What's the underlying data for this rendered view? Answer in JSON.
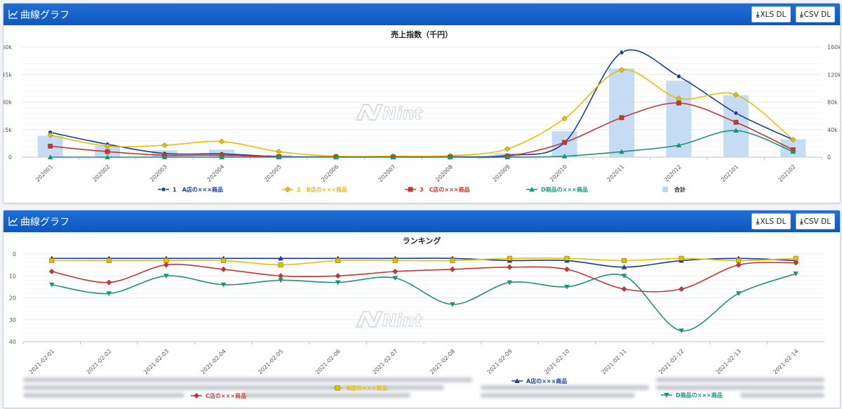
{
  "panel1": {
    "header_title": "曲線グラフ",
    "xls_button": "XLS DL",
    "csv_button": "CSV DL",
    "watermark": "Nint"
  },
  "panel2": {
    "header_title": "曲線グラフ",
    "xls_button": "XLS DL",
    "csv_button": "CSV DL",
    "watermark": "Nint"
  },
  "colors": {
    "header": "#1565c8",
    "seriesA": "#153d99",
    "seriesB": "#e6c000",
    "seriesC": "#cc3333",
    "seriesD": "#1a9477",
    "total": "#bcd6f2"
  },
  "chart_data": [
    {
      "type": "line",
      "title": "売上指数（千円）",
      "categories": [
        "202001",
        "202002",
        "202003",
        "202004",
        "202005",
        "202006",
        "202007",
        "202008",
        "202009",
        "202010",
        "202011",
        "202012",
        "202101",
        "202102"
      ],
      "y_left": {
        "min": 0,
        "max": 60000,
        "ticks": [
          "0",
          "15k",
          "30k",
          "45k",
          "60k"
        ]
      },
      "y_right": {
        "min": 0,
        "max": 160000,
        "ticks": [
          "0",
          "40k",
          "80k",
          "120k",
          "160k"
        ]
      },
      "grid": true,
      "legend_position": "bottom",
      "series": [
        {
          "name": "1　A店の×××商品",
          "type": "line",
          "axis": "left",
          "marker": "circle",
          "color": "#153d99",
          "values": [
            13500,
            7000,
            2000,
            1800,
            300,
            200,
            200,
            200,
            1000,
            8000,
            57000,
            44000,
            24000,
            9500
          ]
        },
        {
          "name": "2　B店の×××商品",
          "type": "line",
          "axis": "left",
          "marker": "diamond",
          "color": "#e6c000",
          "values": [
            12000,
            6000,
            6500,
            8500,
            3000,
            500,
            500,
            800,
            4500,
            21000,
            47500,
            32000,
            34000,
            9500
          ]
        },
        {
          "name": "3　C店の×××商品",
          "type": "line",
          "axis": "left",
          "marker": "square",
          "color": "#cc3333",
          "values": [
            6000,
            3000,
            1000,
            1000,
            200,
            100,
            100,
            100,
            500,
            8000,
            21500,
            29500,
            19000,
            4000
          ]
        },
        {
          "name": "D商品の×××商品",
          "type": "line",
          "axis": "left",
          "marker": "triangle",
          "color": "#1a9477",
          "values": [
            0,
            0,
            0,
            0,
            0,
            0,
            0,
            0,
            0,
            500,
            3000,
            6500,
            14500,
            3000
          ]
        },
        {
          "name": "合計",
          "type": "bar",
          "axis": "right",
          "color": "#bcd6f2",
          "values": [
            31000,
            16000,
            10000,
            11000,
            3500,
            800,
            800,
            1100,
            6000,
            38000,
            129000,
            111000,
            90000,
            26000
          ]
        }
      ]
    },
    {
      "type": "line",
      "title": "ランキング",
      "categories": [
        "2021-02-01",
        "2021-02-02",
        "2021-02-03",
        "2021-02-04",
        "2021-02-05",
        "2021-02-06",
        "2021-02-07",
        "2021-02-08",
        "2021-02-09",
        "2021-02-10",
        "2021-02-11",
        "2021-02-12",
        "2021-02-13",
        "2021-02-14"
      ],
      "y_axis": {
        "min": 0,
        "max": 40,
        "reversed": true,
        "ticks": [
          "0",
          "10",
          "20",
          "30",
          "40"
        ]
      },
      "grid": true,
      "legend_position": "bottom",
      "series": [
        {
          "name": "A店の×××商品",
          "marker": "triangle",
          "color": "#153d99",
          "values": [
            2,
            2,
            2,
            2,
            2,
            2,
            2,
            2,
            3,
            3,
            6,
            3,
            2,
            3
          ]
        },
        {
          "name": "B店の×××商品",
          "marker": "square",
          "color": "#e6c000",
          "values": [
            3,
            3,
            3,
            3,
            5,
            3,
            3,
            3,
            2,
            2,
            3,
            2,
            3,
            2
          ]
        },
        {
          "name": "C店の×××商品",
          "marker": "diamond",
          "color": "#cc3333",
          "values": [
            8,
            13,
            5,
            7,
            10,
            10,
            8,
            7,
            6,
            7,
            16,
            16,
            5,
            4
          ]
        },
        {
          "name": "D商品の×××商品",
          "marker": "triangle-down",
          "color": "#1a9477",
          "values": [
            14,
            18,
            10,
            14,
            12,
            13,
            11,
            23,
            13,
            15,
            10,
            35,
            18,
            9
          ]
        }
      ]
    }
  ]
}
